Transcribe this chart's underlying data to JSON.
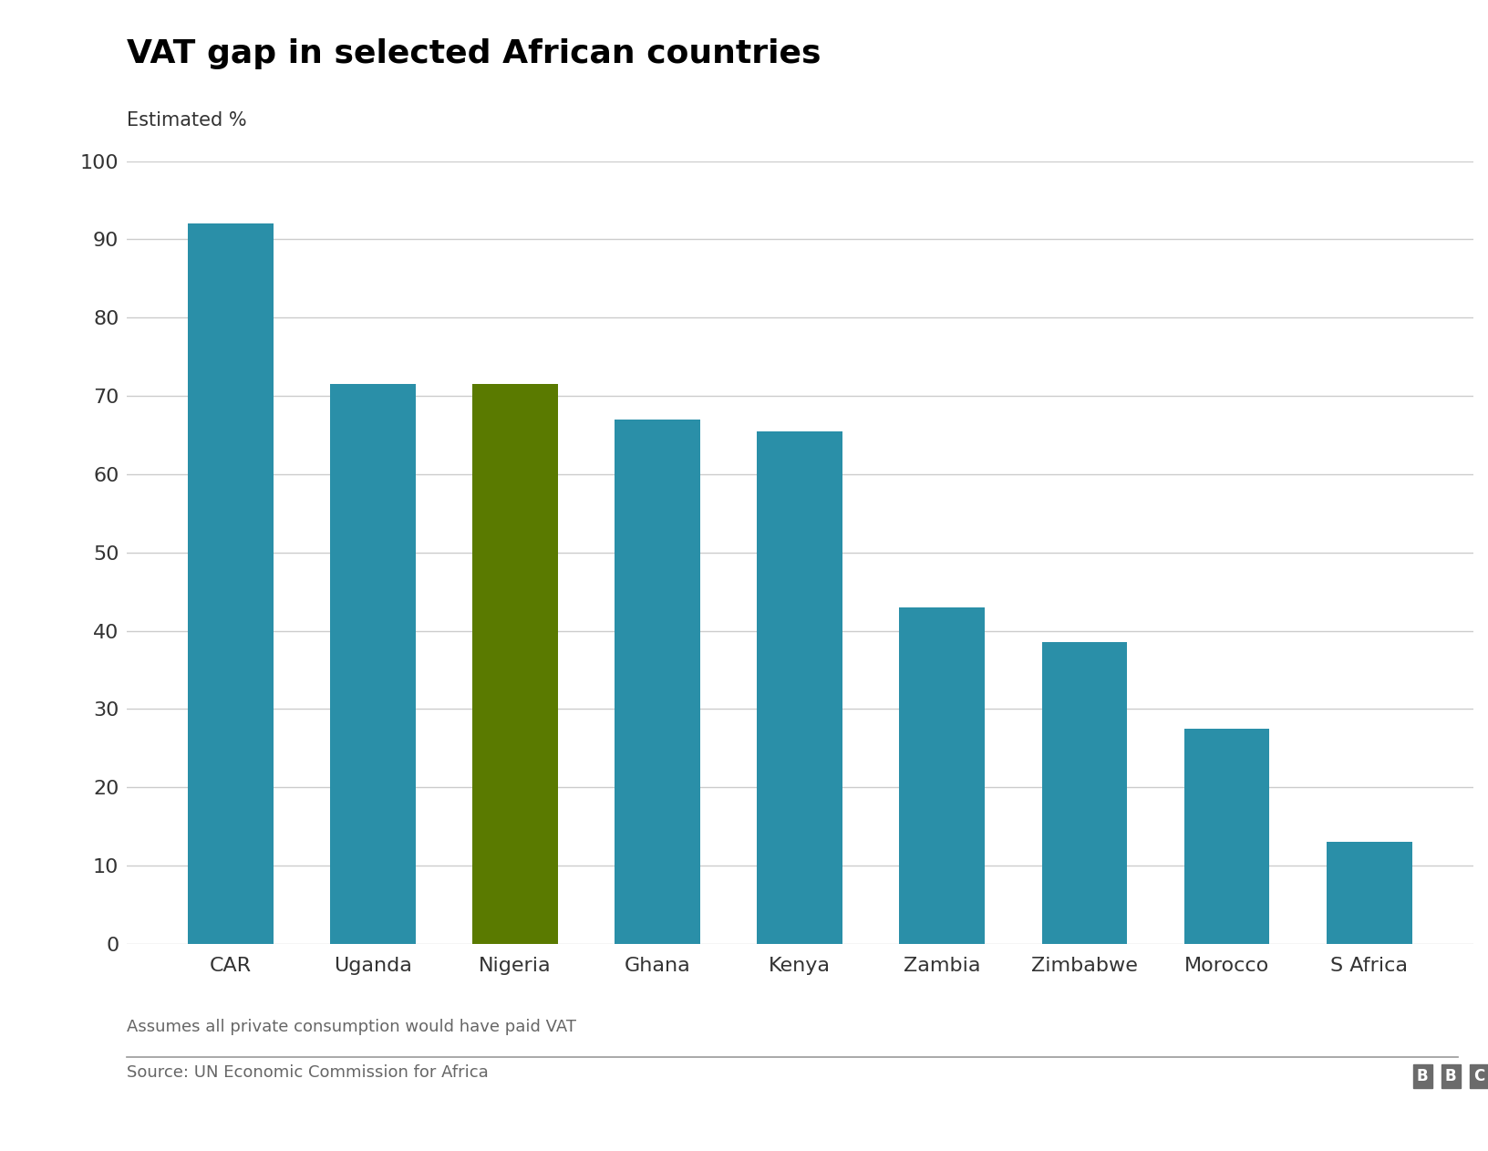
{
  "title": "VAT gap in selected African countries",
  "ylabel": "Estimated %",
  "categories": [
    "CAR",
    "Uganda",
    "Nigeria",
    "Ghana",
    "Kenya",
    "Zambia",
    "Zimbabwe",
    "Morocco",
    "S Africa"
  ],
  "values": [
    92,
    71.5,
    71.5,
    67,
    65.5,
    43,
    38.5,
    27.5,
    13
  ],
  "bar_colors": [
    "#2a8fa8",
    "#2a8fa8",
    "#5a7a00",
    "#2a8fa8",
    "#2a8fa8",
    "#2a8fa8",
    "#2a8fa8",
    "#2a8fa8",
    "#2a8fa8"
  ],
  "ylim": [
    0,
    100
  ],
  "yticks": [
    0,
    10,
    20,
    30,
    40,
    50,
    60,
    70,
    80,
    90,
    100
  ],
  "footnote": "Assumes all private consumption would have paid VAT",
  "source": "Source: UN Economic Commission for Africa",
  "bbc_logo": "BBC",
  "background_color": "#ffffff",
  "grid_color": "#cccccc",
  "title_fontsize": 26,
  "ylabel_fontsize": 15,
  "tick_fontsize": 16,
  "footnote_fontsize": 13,
  "source_fontsize": 13,
  "bar_width": 0.6
}
